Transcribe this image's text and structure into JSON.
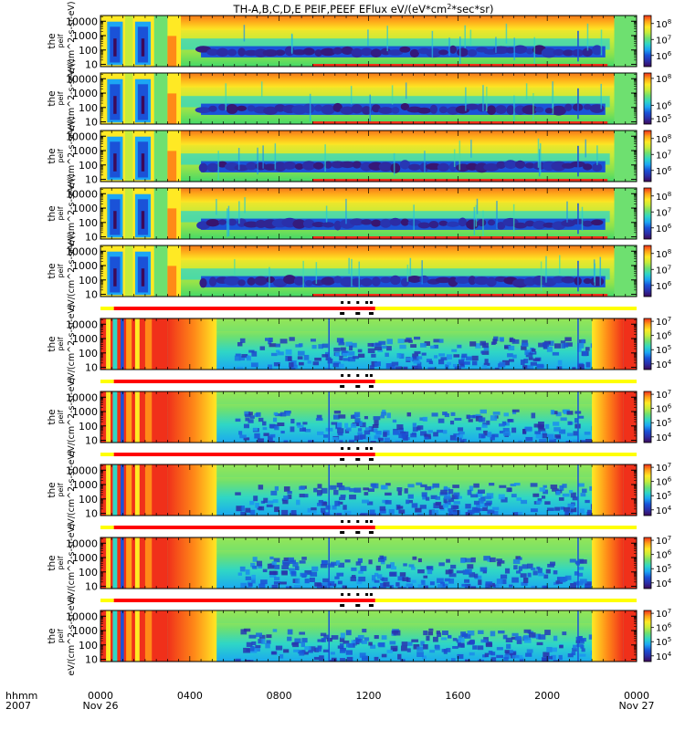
{
  "chart_data": {
    "type": "heatmap",
    "title": "TH-A,B,C,D,E  PEIF,PEEF EFlux eV/(eV*cm^2*sec*sr)",
    "title_parts": {
      "prefix": "TH-A,B,C,D,E  PEIF,PEEF EFlux eV/(eV*cm",
      "sup": "2",
      "suffix": "*sec*sr)"
    },
    "x_axis": {
      "label_top": "hhmm",
      "label_bottom": "2007",
      "range_hours": [
        0,
        24
      ],
      "ticks": [
        {
          "hour": 0,
          "label": "0000",
          "sublabel": "Nov 26"
        },
        {
          "hour": 4,
          "label": "0400",
          "sublabel": ""
        },
        {
          "hour": 8,
          "label": "0800",
          "sublabel": ""
        },
        {
          "hour": 12,
          "label": "1200",
          "sublabel": ""
        },
        {
          "hour": 16,
          "label": "1600",
          "sublabel": ""
        },
        {
          "hour": 20,
          "label": "2000",
          "sublabel": ""
        },
        {
          "hour": 24,
          "label": "0000",
          "sublabel": "Nov 27"
        }
      ]
    },
    "y_axis_ticks": [
      {
        "value": 10,
        "label": "10"
      },
      {
        "value": 100,
        "label": "100"
      },
      {
        "value": 1000,
        "label": "1000"
      },
      {
        "value": 10000,
        "label": "10000"
      }
    ],
    "y_range_eV": [
      7,
      25000
    ],
    "panels": [
      {
        "name": "tha peif",
        "species": "ion",
        "ylabel": [
          "the",
          "peif",
          "eV/(cm^2-s-sr-eV)"
        ],
        "colorbar": {
          "labels": [
            "10^6",
            "10^7",
            "10^8"
          ],
          "range_log": [
            5.3,
            8.5
          ]
        }
      },
      {
        "name": "thb peif",
        "species": "ion",
        "ylabel": [
          "the",
          "peif",
          "eV/(cm^2-s-sr-eV)"
        ],
        "colorbar": {
          "labels": [
            "10^5",
            "10^6",
            "10^8"
          ],
          "range_log": [
            4.6,
            8.4
          ]
        }
      },
      {
        "name": "thc peif",
        "species": "ion",
        "ylabel": [
          "the",
          "peif",
          "eV/(cm^2-s-sr-eV)"
        ],
        "colorbar": {
          "labels": [
            "10^6",
            "10^7",
            "10^8"
          ],
          "range_log": [
            5.3,
            8.5
          ]
        }
      },
      {
        "name": "thd peif",
        "species": "ion",
        "ylabel": [
          "the",
          "peif",
          "eV/(cm^2-s-sr-eV)"
        ],
        "colorbar": {
          "labels": [
            "10^6",
            "10^7",
            "10^8"
          ],
          "range_log": [
            5.3,
            8.5
          ]
        }
      },
      {
        "name": "the peif",
        "species": "ion",
        "ylabel": [
          "the",
          "peif",
          "eV/(cm^2-s-sr-eV)"
        ],
        "colorbar": {
          "labels": [
            "10^6",
            "10^7",
            "10^8"
          ],
          "range_log": [
            5.3,
            8.5
          ]
        }
      },
      {
        "name": "tha peef",
        "species": "electron",
        "ylabel": [
          "the",
          "peif",
          "eV/(cm^2-s-sr-eV)"
        ],
        "colorbar": {
          "labels": [
            "10^4",
            "10^5",
            "10^6",
            "10^7"
          ],
          "range_log": [
            3.6,
            7.2
          ]
        }
      },
      {
        "name": "thb peef",
        "species": "electron",
        "ylabel": [
          "the",
          "peif",
          "eV/(cm^2-s-sr-eV)"
        ],
        "colorbar": {
          "labels": [
            "10^4",
            "10^5",
            "10^6",
            "10^7"
          ],
          "range_log": [
            3.6,
            7.2
          ]
        }
      },
      {
        "name": "thc peef",
        "species": "electron",
        "ylabel": [
          "the",
          "peif",
          "eV/(cm^2-s-sr-eV)"
        ],
        "colorbar": {
          "labels": [
            "10^4",
            "10^5",
            "10^6",
            "10^7"
          ],
          "range_log": [
            3.6,
            7.2
          ]
        }
      },
      {
        "name": "thd peef",
        "species": "electron",
        "ylabel": [
          "the",
          "peif",
          "eV/(cm^2-s-sr-eV)"
        ],
        "colorbar": {
          "labels": [
            "10^4",
            "10^5",
            "10^6",
            "10^7"
          ],
          "range_log": [
            3.6,
            7.2
          ]
        }
      },
      {
        "name": "the peef",
        "species": "electron",
        "ylabel": [
          "the",
          "peif",
          "eV/(cm^2-s-sr-eV)"
        ],
        "colorbar": {
          "labels": [
            "10^4",
            "10^5",
            "10^6",
            "10^7"
          ],
          "range_log": [
            3.6,
            7.2
          ]
        }
      }
    ],
    "mode_bar": {
      "segments": [
        {
          "from_hour": 0.0,
          "to_hour": 0.6,
          "color": "#ffff00"
        },
        {
          "from_hour": 0.6,
          "to_hour": 12.3,
          "color": "#ff0000"
        },
        {
          "from_hour": 12.3,
          "to_hour": 24.0,
          "color": "#ffff00"
        }
      ],
      "markers_hours": [
        10.8,
        11.1,
        11.5,
        11.9,
        12.1
      ]
    },
    "colormap": [
      "#3d0a58",
      "#2b2ea8",
      "#1a52d8",
      "#1ca6f4",
      "#2fd6c6",
      "#6ee070",
      "#c6ec3a",
      "#ffe924",
      "#ffa018",
      "#f0301a"
    ]
  }
}
